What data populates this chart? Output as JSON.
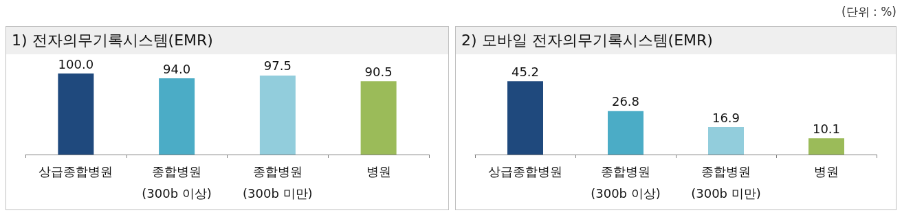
{
  "chart_data": [
    {
      "type": "bar",
      "title": "1) 전자의무기록시스템(EMR)",
      "categories": [
        "상급종합병원",
        "종합병원\n(300b 이상)",
        "종합병원\n(300b 미만)",
        "병원"
      ],
      "values": [
        100.0,
        94.0,
        97.5,
        90.5
      ],
      "value_labels": [
        "100.0",
        "94.0",
        "97.5",
        "90.5"
      ],
      "colors": [
        "#1f497d",
        "#4bacc6",
        "#92cddc",
        "#9bbb59"
      ]
    },
    {
      "type": "bar",
      "title": "2) 모바일 전자의무기록시스템(EMR)",
      "categories": [
        "상급종합병원",
        "종합병원\n(300b 이상)",
        "종합병원\n(300b 미만)",
        "병원"
      ],
      "values": [
        45.2,
        26.8,
        16.9,
        10.1
      ],
      "value_labels": [
        "45.2",
        "26.8",
        "16.9",
        "10.1"
      ],
      "colors": [
        "#1f497d",
        "#4bacc6",
        "#92cddc",
        "#9bbb59"
      ],
      "annotations": [
        "(단위 : %)"
      ]
    }
  ]
}
